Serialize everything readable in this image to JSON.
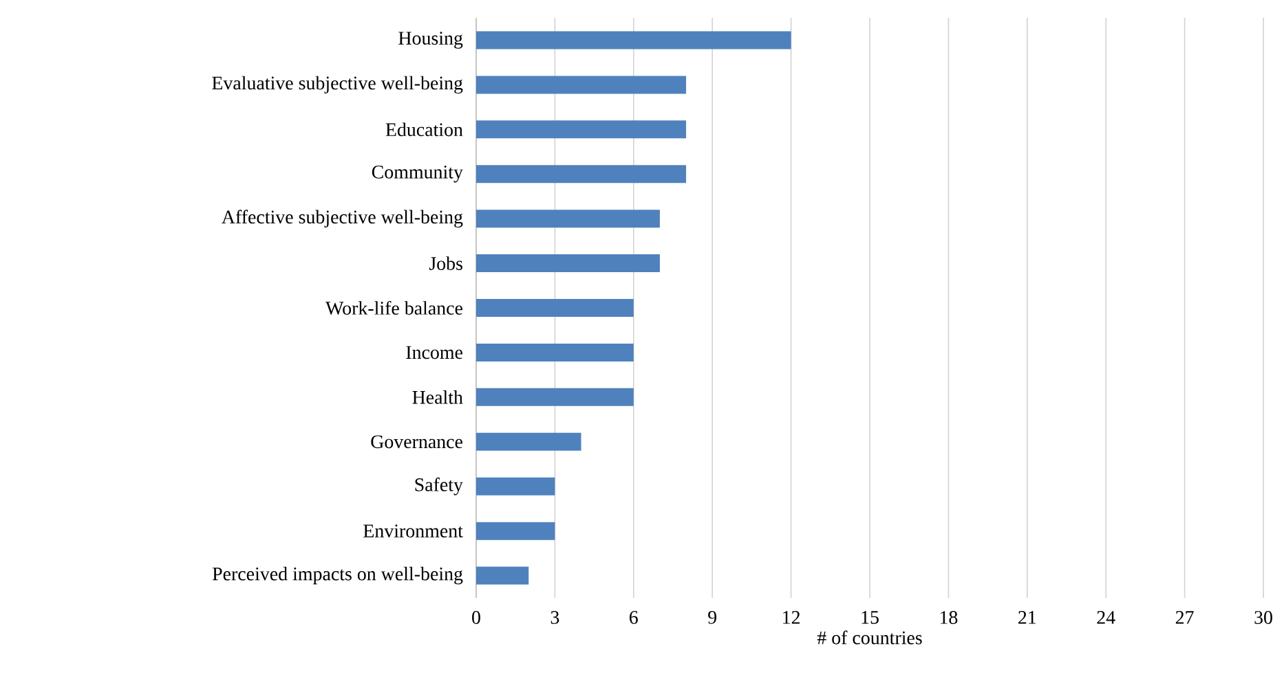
{
  "chart_data": {
    "type": "bar",
    "orientation": "horizontal",
    "xlabel": "# of countries",
    "categories": [
      "Housing",
      "Evaluative subjective well-being",
      "Education",
      "Community",
      "Affective subjective well-being",
      "Jobs",
      "Work-life balance",
      "Income",
      "Health",
      "Governance",
      "Safety",
      "Environment",
      "Perceived impacts on well-being"
    ],
    "values": [
      12,
      8,
      8,
      8,
      7,
      7,
      6,
      6,
      6,
      4,
      3,
      3,
      2
    ],
    "color": "#4f81bd",
    "xlim": [
      0,
      30
    ],
    "xticks": [
      0,
      3,
      6,
      9,
      12,
      15,
      18,
      21,
      24,
      27,
      30
    ],
    "grid": "x"
  }
}
